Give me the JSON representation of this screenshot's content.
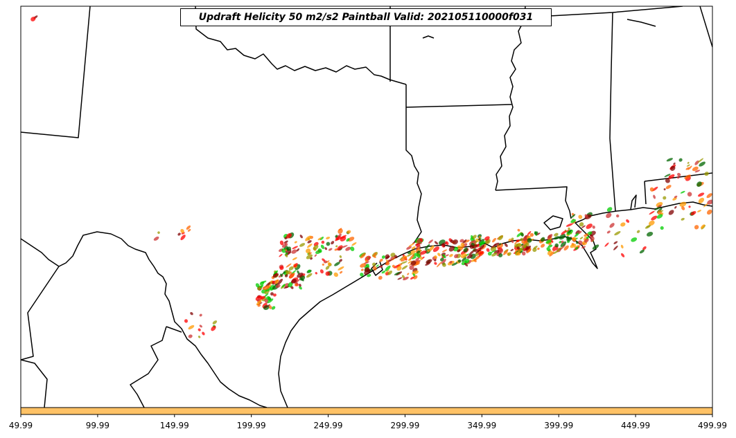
{
  "title": "Updraft Helicity 50 m2/s2 Paintball Valid: 202105110000f031",
  "colorbar": {
    "color": "#ffc266",
    "ticks": [
      "49.99",
      "99.99",
      "149.99",
      "199.99",
      "249.99",
      "299.99",
      "349.99",
      "399.99",
      "449.99",
      "499.99"
    ]
  },
  "paintball_colors": [
    "#ff0000",
    "#00cc00",
    "#ff6600",
    "#ff9900",
    "#800000",
    "#999900",
    "#006600",
    "#cc3333"
  ]
}
